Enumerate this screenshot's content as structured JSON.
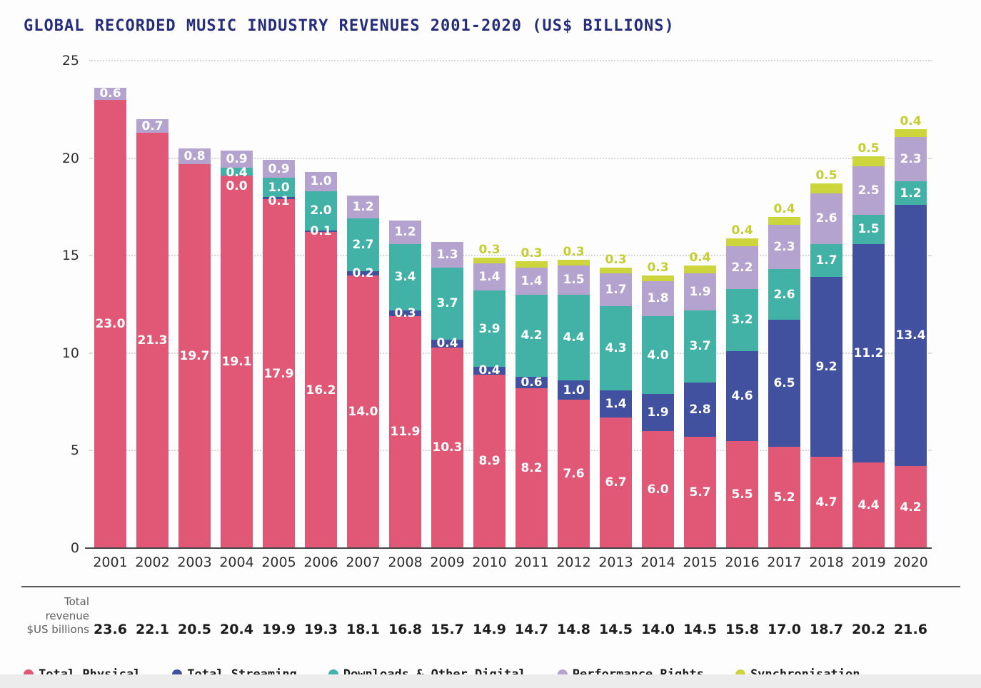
{
  "page": {
    "title": "GLOBAL RECORDED MUSIC INDUSTRY REVENUES 2001-2020 (US$ BILLIONS)"
  },
  "total_row": {
    "label_line1": "Total revenue",
    "label_line2": "$US billions"
  },
  "legend": [
    {
      "label": "Total Physical",
      "color": "#e05875"
    },
    {
      "label": "Total Streaming",
      "color": "#41519f"
    },
    {
      "label": "Downloads & Other Digital",
      "color": "#41b2a5"
    },
    {
      "label": "Performance Rights",
      "color": "#b5a3cf"
    },
    {
      "label": "Synchronisation",
      "color": "#ccd63c"
    }
  ],
  "colors": {
    "title": "#252d7b",
    "sync_label_text": "#c3cf30",
    "axis_text": "#2f2f2f",
    "baseline": "#474747"
  },
  "chart_data": {
    "type": "bar",
    "stacked": true,
    "title": "GLOBAL RECORDED MUSIC INDUSTRY REVENUES 2001-2020 (US$ BILLIONS)",
    "xlabel": "",
    "ylabel": "US$ billions",
    "ylim": [
      0,
      25
    ],
    "yticks": [
      0,
      5,
      10,
      15,
      20,
      25
    ],
    "grid": "dotted horizontal",
    "legend_position": "bottom",
    "categories": [
      "2001",
      "2002",
      "2003",
      "2004",
      "2005",
      "2006",
      "2007",
      "2008",
      "2009",
      "2010",
      "2011",
      "2012",
      "2013",
      "2014",
      "2015",
      "2016",
      "2017",
      "2018",
      "2019",
      "2020"
    ],
    "series": [
      {
        "name": "Total Physical",
        "color": "#e05875",
        "values": [
          23.0,
          21.3,
          19.7,
          19.1,
          17.9,
          16.2,
          14.0,
          11.9,
          10.3,
          8.9,
          8.2,
          7.6,
          6.7,
          6.0,
          5.7,
          5.5,
          5.2,
          4.7,
          4.4,
          4.2
        ]
      },
      {
        "name": "Total Streaming",
        "color": "#41519f",
        "values": [
          null,
          null,
          null,
          0.0,
          0.1,
          0.1,
          0.2,
          0.3,
          0.4,
          0.4,
          0.6,
          1.0,
          1.4,
          1.9,
          2.8,
          4.6,
          6.5,
          9.2,
          11.2,
          13.4
        ]
      },
      {
        "name": "Downloads & Other Digital",
        "color": "#41b2a5",
        "values": [
          null,
          null,
          null,
          0.4,
          1.0,
          2.0,
          2.7,
          3.4,
          3.7,
          3.9,
          4.2,
          4.4,
          4.3,
          4.0,
          3.7,
          3.2,
          2.6,
          1.7,
          1.5,
          1.2
        ]
      },
      {
        "name": "Performance Rights",
        "color": "#b5a3cf",
        "values": [
          0.6,
          0.7,
          0.8,
          0.9,
          0.9,
          1.0,
          1.2,
          1.2,
          1.3,
          1.4,
          1.4,
          1.5,
          1.7,
          1.8,
          1.9,
          2.2,
          2.3,
          2.6,
          2.5,
          2.3
        ]
      },
      {
        "name": "Synchronisation",
        "color": "#ccd63c",
        "values": [
          null,
          null,
          null,
          null,
          null,
          null,
          null,
          null,
          null,
          0.3,
          0.3,
          0.3,
          0.3,
          0.3,
          0.4,
          0.4,
          0.4,
          0.5,
          0.5,
          0.4
        ]
      }
    ],
    "totals": [
      23.6,
      22.1,
      20.5,
      20.4,
      19.9,
      19.3,
      18.1,
      16.8,
      15.7,
      14.9,
      14.7,
      14.8,
      14.5,
      14.0,
      14.5,
      15.8,
      17.0,
      18.7,
      20.2,
      21.6
    ]
  }
}
